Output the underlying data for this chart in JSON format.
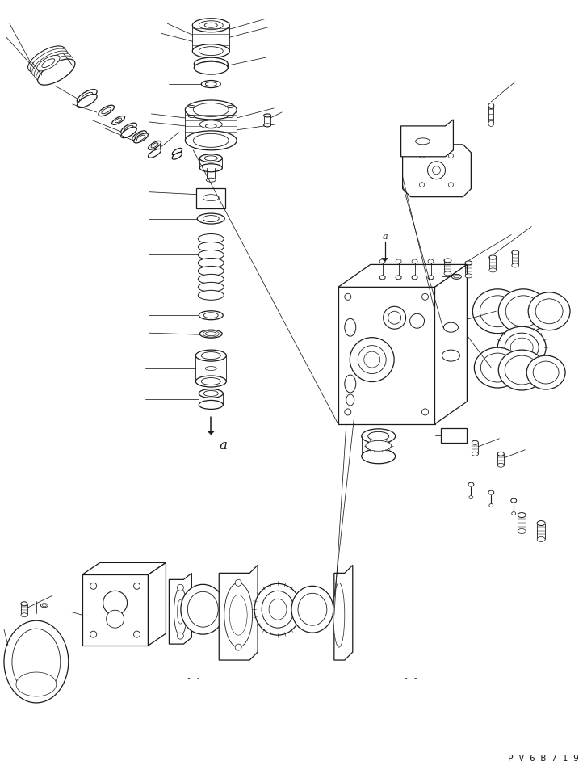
{
  "bg_color": "#ffffff",
  "line_color": "#1a1a1a",
  "fig_width": 7.27,
  "fig_height": 9.58,
  "dpi": 100,
  "watermark_text": "P V 6 B 7 1 9"
}
